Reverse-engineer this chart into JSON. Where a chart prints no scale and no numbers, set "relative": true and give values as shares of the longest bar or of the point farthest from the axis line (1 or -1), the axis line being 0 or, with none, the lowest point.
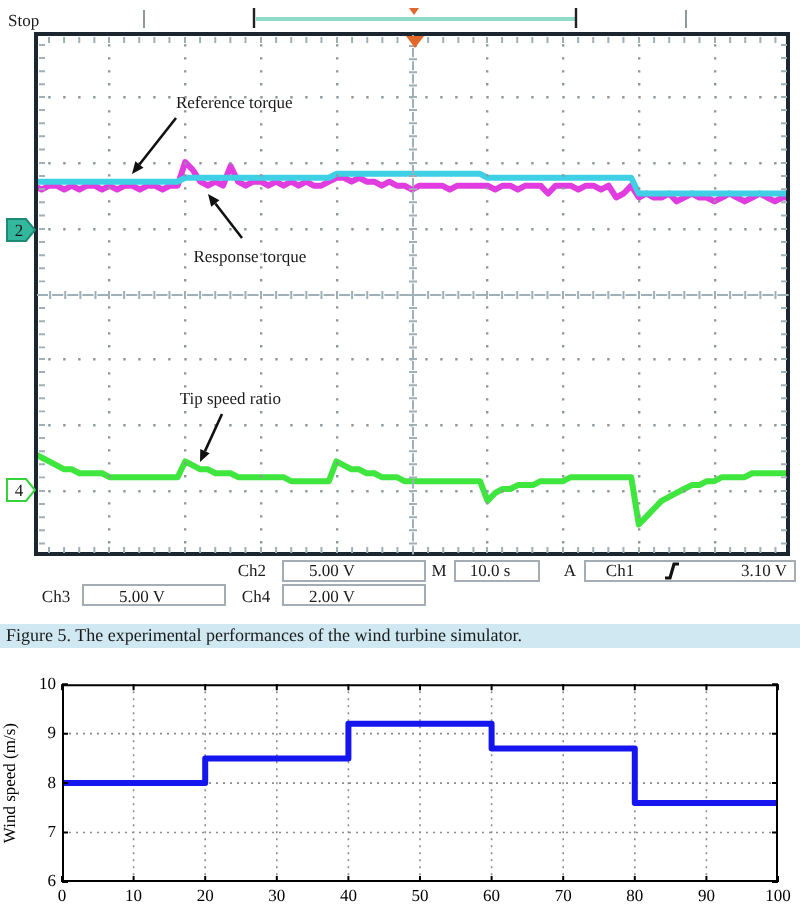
{
  "chart_data": [
    {
      "type": "line",
      "relative": true,
      "categories": [
        null,
        null,
        null,
        null,
        null,
        null,
        null,
        null,
        null,
        null,
        null,
        null,
        null,
        null,
        null,
        null,
        null,
        null,
        null,
        null,
        null,
        null,
        null,
        null,
        null,
        null,
        null,
        null,
        null,
        null,
        null,
        null,
        null,
        null,
        null,
        null,
        null,
        null,
        null,
        null,
        null,
        null,
        null,
        null,
        null,
        null,
        null,
        null,
        null,
        null,
        null,
        null,
        null,
        null,
        null,
        null,
        null,
        null,
        null,
        null,
        null,
        null,
        null,
        null,
        null,
        null,
        null,
        null,
        null,
        null,
        null,
        null,
        null,
        null,
        null,
        null,
        null,
        null,
        null,
        null,
        null,
        null,
        null,
        null,
        null,
        null,
        null,
        null,
        null,
        null,
        null,
        null,
        null,
        null,
        null,
        null,
        null,
        null,
        null,
        null,
        null
      ],
      "series": [
        {
          "name": "Reference torque",
          "color": "#3fd0e6",
          "values": [
            0.95,
            0.95,
            0.95,
            0.95,
            0.95,
            0.95,
            0.95,
            0.95,
            0.95,
            0.95,
            0.95,
            0.95,
            0.95,
            0.95,
            0.95,
            0.95,
            0.95,
            0.95,
            0.95,
            0.95,
            0.96,
            0.96,
            0.96,
            0.96,
            0.96,
            0.96,
            0.96,
            0.96,
            0.96,
            0.96,
            0.96,
            0.96,
            0.96,
            0.96,
            0.96,
            0.96,
            0.96,
            0.96,
            0.96,
            0.96,
            0.97,
            0.97,
            0.97,
            0.97,
            0.97,
            0.97,
            0.97,
            0.97,
            0.97,
            0.97,
            0.97,
            0.97,
            0.97,
            0.97,
            0.97,
            0.97,
            0.97,
            0.97,
            0.97,
            0.97,
            0.96,
            0.96,
            0.96,
            0.96,
            0.96,
            0.96,
            0.96,
            0.96,
            0.96,
            0.96,
            0.96,
            0.96,
            0.96,
            0.96,
            0.96,
            0.96,
            0.96,
            0.96,
            0.96,
            0.96,
            0.92,
            0.92,
            0.92,
            0.92,
            0.92,
            0.92,
            0.92,
            0.92,
            0.92,
            0.92,
            0.92,
            0.92,
            0.92,
            0.92,
            0.92,
            0.92,
            0.92,
            0.92,
            0.92,
            0.92,
            0.92
          ]
        },
        {
          "name": "Response torque",
          "color": "#e03ce0",
          "values": [
            0.94,
            0.93,
            0.94,
            0.94,
            0.93,
            0.94,
            0.93,
            0.94,
            0.94,
            0.93,
            0.94,
            0.93,
            0.94,
            0.94,
            0.93,
            0.94,
            0.94,
            0.93,
            0.94,
            0.94,
            1.0,
            0.98,
            0.95,
            0.94,
            0.95,
            0.94,
            0.99,
            0.95,
            0.94,
            0.95,
            0.95,
            0.94,
            0.95,
            0.94,
            0.95,
            0.94,
            0.95,
            0.94,
            0.94,
            0.95,
            0.96,
            0.96,
            0.95,
            0.96,
            0.95,
            0.95,
            0.94,
            0.95,
            0.94,
            0.94,
            0.93,
            0.94,
            0.94,
            0.94,
            0.94,
            0.93,
            0.94,
            0.94,
            0.94,
            0.94,
            0.94,
            0.93,
            0.94,
            0.94,
            0.93,
            0.94,
            0.94,
            0.94,
            0.92,
            0.94,
            0.94,
            0.94,
            0.93,
            0.94,
            0.94,
            0.93,
            0.94,
            0.91,
            0.92,
            0.94,
            0.91,
            0.92,
            0.91,
            0.91,
            0.92,
            0.9,
            0.91,
            0.92,
            0.91,
            0.91,
            0.9,
            0.91,
            0.92,
            0.91,
            0.9,
            0.91,
            0.92,
            0.91,
            0.9,
            0.91,
            0.91
          ]
        },
        {
          "name": "Tip speed ratio",
          "color": "#3ee63e",
          "values": [
            0.26,
            0.25,
            0.24,
            0.23,
            0.22,
            0.22,
            0.21,
            0.21,
            0.21,
            0.21,
            0.2,
            0.2,
            0.2,
            0.2,
            0.2,
            0.2,
            0.2,
            0.2,
            0.2,
            0.2,
            0.24,
            0.23,
            0.22,
            0.22,
            0.21,
            0.21,
            0.21,
            0.2,
            0.2,
            0.2,
            0.2,
            0.2,
            0.2,
            0.2,
            0.19,
            0.19,
            0.19,
            0.19,
            0.19,
            0.19,
            0.24,
            0.23,
            0.22,
            0.22,
            0.21,
            0.21,
            0.2,
            0.2,
            0.2,
            0.19,
            0.19,
            0.19,
            0.19,
            0.19,
            0.19,
            0.19,
            0.19,
            0.19,
            0.19,
            0.19,
            0.14,
            0.16,
            0.17,
            0.17,
            0.18,
            0.18,
            0.18,
            0.19,
            0.19,
            0.19,
            0.19,
            0.2,
            0.2,
            0.2,
            0.2,
            0.2,
            0.2,
            0.2,
            0.2,
            0.2,
            0.08,
            0.1,
            0.12,
            0.14,
            0.15,
            0.16,
            0.17,
            0.18,
            0.18,
            0.19,
            0.19,
            0.2,
            0.2,
            0.2,
            0.2,
            0.21,
            0.21,
            0.21,
            0.21,
            0.21,
            0.21
          ]
        }
      ],
      "annotations": [
        "Stop",
        "2",
        "4",
        "Ch2",
        "5.00 V",
        "M",
        "10.0 s",
        "A",
        "Ch1",
        "3.10 V",
        "Ch3",
        "5.00 V",
        "Ch4",
        "2.00 V",
        "Figure 5. The experimental performances of the wind turbine simulator."
      ]
    },
    {
      "type": "step",
      "x": [
        0,
        20,
        40,
        60,
        80,
        100
      ],
      "values": [
        8,
        8.5,
        9.2,
        8.7,
        7.6,
        7.6
      ],
      "color": "#1515f0",
      "xlim": [
        0,
        100
      ],
      "xticks": [
        0,
        10,
        20,
        30,
        40,
        50,
        60,
        70,
        80,
        90,
        100
      ],
      "ylim": [
        6,
        10
      ],
      "yticks": [
        6,
        7,
        8,
        9,
        10
      ],
      "ylabel": "Wind speed (m/s)",
      "grid": true
    }
  ]
}
